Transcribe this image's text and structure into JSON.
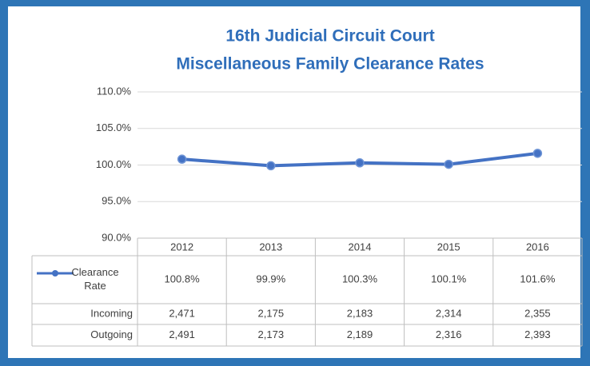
{
  "chart_data": {
    "type": "line",
    "title": [
      "16th Judicial Circuit Court",
      "Miscellaneous Family Clearance Rates"
    ],
    "categories": [
      "2012",
      "2013",
      "2014",
      "2015",
      "2016"
    ],
    "series": [
      {
        "name": "Clearance Rate",
        "color": "#4472c4",
        "values": [
          100.8,
          99.9,
          100.3,
          100.1,
          101.6
        ],
        "value_labels": [
          "100.8%",
          "99.9%",
          "100.3%",
          "100.1%",
          "101.6%"
        ]
      }
    ],
    "ylim": [
      90,
      110
    ],
    "yticks": [
      {
        "value": 90,
        "label": "90.0%"
      },
      {
        "value": 95,
        "label": "95.0%"
      },
      {
        "value": 100,
        "label": "100.0%"
      },
      {
        "value": 105,
        "label": "105.0%"
      },
      {
        "value": 110,
        "label": "110.0%"
      }
    ],
    "grid": true,
    "data_table": [
      {
        "name": "Incoming",
        "cells": [
          "2,471",
          "2,175",
          "2,183",
          "2,314",
          "2,355"
        ]
      },
      {
        "name": "Outgoing",
        "cells": [
          "2,491",
          "2,173",
          "2,189",
          "2,316",
          "2,393"
        ]
      }
    ]
  }
}
